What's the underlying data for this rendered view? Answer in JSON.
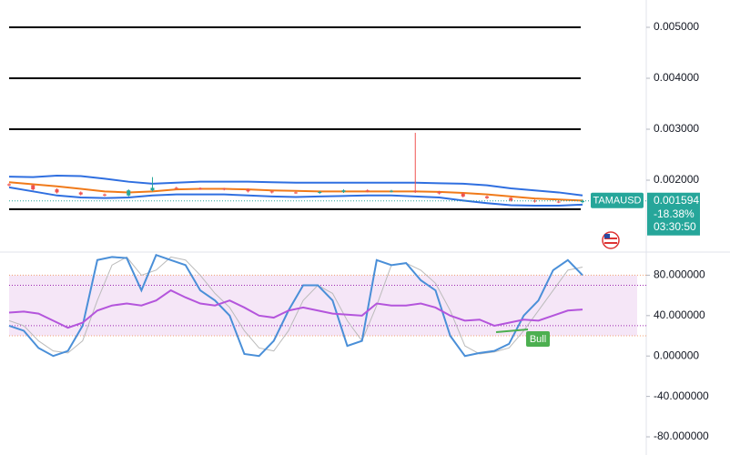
{
  "chart_data": [
    {
      "type": "candlestick",
      "symbol": "TAMAUSD",
      "last_price": 0.001594,
      "change": {
        "value": -18.38,
        "label": "-18.38%"
      },
      "countdown": "03:30:50",
      "ylim": [
        0.000625,
        0.005536
      ],
      "yticks": [
        {
          "value": 0.005,
          "label": "0.005000"
        },
        {
          "value": 0.004,
          "label": "0.004000"
        },
        {
          "value": 0.003,
          "label": "0.003000"
        },
        {
          "value": 0.002,
          "label": "0.002000"
        }
      ],
      "levels": [
        0.005,
        0.004,
        0.003,
        0.00143
      ],
      "up_color": "#26a69a",
      "down_color": "#ef5350",
      "price_color": "#26a69a",
      "open": [
        0.00192,
        0.0019,
        0.00182,
        0.00176,
        0.00172,
        0.0017,
        0.0018,
        0.00185,
        0.00184,
        0.00183,
        0.00182,
        0.00178,
        0.00176,
        0.00175,
        0.00177,
        0.0018,
        0.00178,
        0.00179,
        0.00177,
        0.00174,
        0.00168,
        0.00165,
        0.0016,
        0.00158,
        0.00157
      ],
      "high": [
        0.00194,
        0.00192,
        0.00184,
        0.00178,
        0.00174,
        0.00182,
        0.00206,
        0.00187,
        0.00186,
        0.00185,
        0.00184,
        0.0018,
        0.00178,
        0.00179,
        0.00182,
        0.00182,
        0.00181,
        0.00293,
        0.00179,
        0.00176,
        0.0017,
        0.00167,
        0.00162,
        0.0016,
        0.00162
      ],
      "low": [
        0.00188,
        0.0018,
        0.00174,
        0.0017,
        0.00168,
        0.00168,
        0.00178,
        0.00182,
        0.00181,
        0.0018,
        0.00176,
        0.00174,
        0.00173,
        0.00173,
        0.00175,
        0.00176,
        0.00176,
        0.00175,
        0.00172,
        0.00166,
        0.00163,
        0.00158,
        0.00156,
        0.00155,
        0.00155
      ],
      "close": [
        0.0019,
        0.00182,
        0.00176,
        0.00172,
        0.0017,
        0.0018,
        0.00185,
        0.00184,
        0.00183,
        0.00182,
        0.00178,
        0.00176,
        0.00175,
        0.00177,
        0.0018,
        0.00178,
        0.00179,
        0.00177,
        0.00174,
        0.00168,
        0.00165,
        0.0016,
        0.00158,
        0.00157,
        0.001594
      ],
      "series": [
        {
          "color": "#2f6fe0",
          "values": [
            0.00207,
            0.00206,
            0.00209,
            0.00208,
            0.00203,
            0.00197,
            0.00193,
            0.00195,
            0.00197,
            0.00197,
            0.00197,
            0.00196,
            0.00195,
            0.00195,
            0.00195,
            0.00195,
            0.00195,
            0.00195,
            0.00194,
            0.00193,
            0.0019,
            0.00184,
            0.0018,
            0.00176,
            0.0017
          ]
        },
        {
          "color": "#f07a1a",
          "values": [
            0.00196,
            0.00192,
            0.00188,
            0.00183,
            0.00178,
            0.00176,
            0.00178,
            0.00182,
            0.00183,
            0.00183,
            0.00182,
            0.0018,
            0.00179,
            0.00178,
            0.00178,
            0.00178,
            0.00178,
            0.00178,
            0.00177,
            0.00175,
            0.00172,
            0.00168,
            0.00164,
            0.00162,
            0.0016
          ]
        },
        {
          "color": "#2f6fe0",
          "values": [
            0.00186,
            0.00178,
            0.0017,
            0.00166,
            0.00165,
            0.00166,
            0.0017,
            0.00172,
            0.00172,
            0.00172,
            0.0017,
            0.00168,
            0.00167,
            0.00168,
            0.00169,
            0.0017,
            0.0017,
            0.00168,
            0.00166,
            0.0016,
            0.00155,
            0.00151,
            0.0015,
            0.0015,
            0.00152
          ]
        }
      ]
    },
    {
      "type": "line",
      "ylim": [
        -98,
        102
      ],
      "yticks": [
        {
          "value": 80,
          "label": "80.000000"
        },
        {
          "value": 40,
          "label": "40.000000"
        },
        {
          "value": 0,
          "label": "0.000000"
        },
        {
          "value": -40,
          "label": "-40.000000"
        },
        {
          "value": -80,
          "label": "-80.000000"
        }
      ],
      "band": [
        20,
        80
      ],
      "band_color": "#f5e6f7",
      "band_line_color": "#f0a070",
      "levels": [
        70,
        30
      ],
      "level_color": "#9c27b0",
      "annotation": "Bull",
      "annotation_color": "#4caf50",
      "series": [
        {
          "color": "#bbbbbb",
          "values": [
            35,
            30,
            15,
            5,
            3,
            15,
            55,
            90,
            98,
            80,
            85,
            98,
            95,
            80,
            62,
            48,
            25,
            8,
            5,
            25,
            55,
            70,
            62,
            35,
            15,
            50,
            90,
            92,
            85,
            72,
            45,
            10,
            2,
            4,
            8,
            25,
            45,
            65,
            85,
            88
          ]
        },
        {
          "color": "#4a8fd8",
          "values": [
            30,
            25,
            8,
            0,
            5,
            30,
            95,
            98,
            97,
            65,
            100,
            95,
            90,
            65,
            55,
            40,
            2,
            0,
            15,
            45,
            70,
            70,
            55,
            10,
            15,
            95,
            90,
            92,
            75,
            65,
            20,
            0,
            3,
            5,
            12,
            40,
            55,
            85,
            95,
            80
          ]
        },
        {
          "color": "#b455dc",
          "values": [
            43,
            44,
            42,
            35,
            28,
            33,
            45,
            50,
            52,
            50,
            55,
            65,
            58,
            52,
            50,
            55,
            48,
            40,
            38,
            45,
            48,
            45,
            42,
            41,
            40,
            52,
            50,
            50,
            52,
            48,
            40,
            35,
            36,
            30,
            33,
            36,
            35,
            40,
            45,
            46
          ]
        }
      ]
    }
  ]
}
